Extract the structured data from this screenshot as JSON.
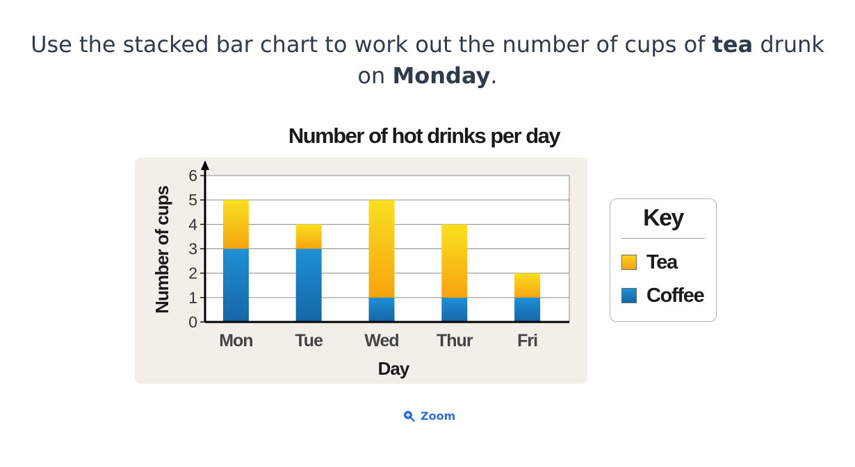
{
  "question": {
    "part1": "Use the stacked bar chart to work out the number of cups of ",
    "bold1": "tea",
    "part2": " drunk on ",
    "bold2": "Monday",
    "part3": "."
  },
  "zoom_label": "Zoom",
  "key": {
    "title": "Key",
    "items": [
      {
        "label": "Tea",
        "color": "#f7b21b"
      },
      {
        "label": "Coffee",
        "color": "#1e7fc2"
      }
    ]
  },
  "chart_data": {
    "type": "bar",
    "stacked": true,
    "title": "Number of hot drinks per day",
    "xlabel": "Day",
    "ylabel": "Number of cups",
    "categories": [
      "Mon",
      "Tue",
      "Wed",
      "Thur",
      "Fri"
    ],
    "series": [
      {
        "name": "Coffee",
        "values": [
          3,
          3,
          1,
          1,
          1
        ]
      },
      {
        "name": "Tea",
        "values": [
          2,
          1,
          4,
          3,
          1
        ]
      }
    ],
    "ylim": [
      0,
      6
    ],
    "yticks": [
      "0",
      "1",
      "2",
      "3",
      "4",
      "5",
      "6"
    ],
    "grid": true,
    "legend": "right"
  }
}
